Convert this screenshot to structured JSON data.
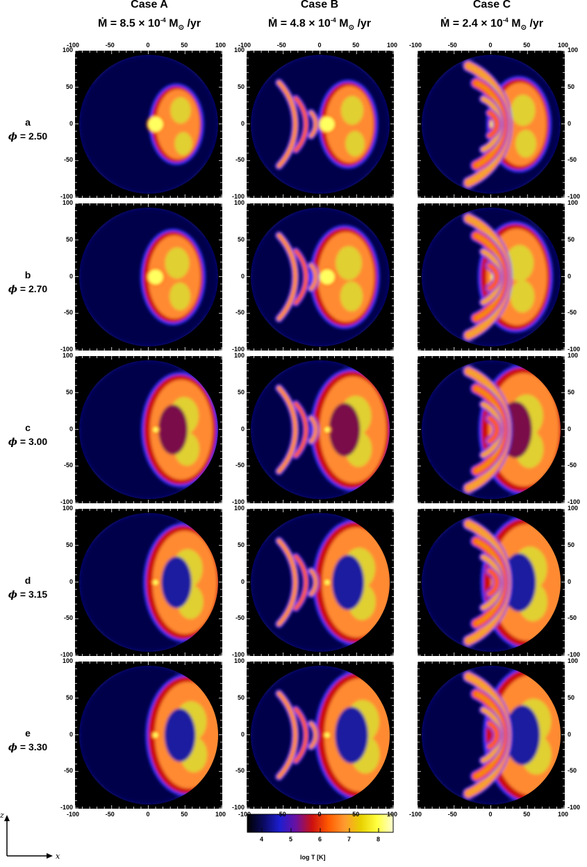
{
  "columns": [
    {
      "title": "Case A",
      "mdot": "Ṁ = 8.5 × 10",
      "exp": "-4",
      "unit": " M",
      "sun": "⊙",
      "tail": " /yr"
    },
    {
      "title": "Case B",
      "mdot": "Ṁ = 4.8 × 10",
      "exp": "-4",
      "unit": " M",
      "sun": "⊙",
      "tail": " /yr"
    },
    {
      "title": "Case C",
      "mdot": "Ṁ = 2.4 × 10",
      "exp": "-4",
      "unit": " M",
      "sun": "⊙",
      "tail": " /yr"
    }
  ],
  "rows": [
    {
      "letter": "a",
      "phi_symbol": "ϕ",
      "phi_value": " = 2.50"
    },
    {
      "letter": "b",
      "phi_symbol": "ϕ",
      "phi_value": " = 2.70"
    },
    {
      "letter": "c",
      "phi_symbol": "ϕ",
      "phi_value": " = 3.00"
    },
    {
      "letter": "d",
      "phi_symbol": "ϕ",
      "phi_value": " = 3.15"
    },
    {
      "letter": "e",
      "phi_symbol": "ϕ",
      "phi_value": " = 3.30"
    }
  ],
  "chart_data": {
    "type": "heatmap",
    "xlim": [
      -100,
      100
    ],
    "ylim": [
      -100,
      100
    ],
    "x_ticks": [
      "-100",
      "-50",
      "0",
      "50",
      "100"
    ],
    "y_ticks": [
      "100",
      "50",
      "0",
      "-50",
      "-100"
    ],
    "axis_x_label": "x",
    "axis_z_label": "z",
    "colorbar": {
      "label": "log T  [K]",
      "ticks": [
        "4",
        "5",
        "6",
        "7",
        "8"
      ],
      "range": [
        3.5,
        8.5
      ],
      "colormap": [
        "#000000",
        "#0a0a60",
        "#1d1dd0",
        "#6a10a0",
        "#cc1010",
        "#ff5a00",
        "#ff9a30",
        "#e8d000",
        "#ffff40",
        "#ffffd0"
      ]
    }
  },
  "colors": {
    "background": "#00004a",
    "ring_edge": "#3030ff",
    "hot_orange": "#ff8a30",
    "hot_yellow": "#e0d030"
  }
}
